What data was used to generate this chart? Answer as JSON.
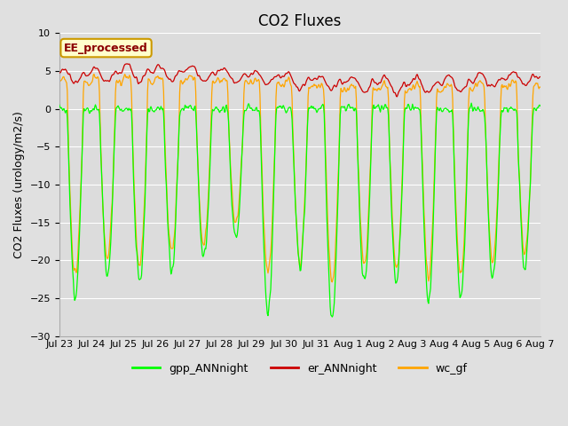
{
  "title": "CO2 Fluxes",
  "ylabel": "CO2 Fluxes (urology/m2/s)",
  "ylim": [
    -30,
    10
  ],
  "yticks": [
    -30,
    -25,
    -20,
    -15,
    -10,
    -5,
    0,
    5,
    10
  ],
  "fig_bg_color": "#e0e0e0",
  "plot_bg_color": "#dcdcdc",
  "legend_label": "EE_processed",
  "legend_bg": "#ffffcc",
  "legend_border": "#cc9900",
  "line_colors": {
    "gpp": "#00ff00",
    "er": "#cc0000",
    "wc": "#ffa500"
  },
  "x_labels": [
    "Jul 23",
    "Jul 24",
    "Jul 25",
    "Jul 26",
    "Jul 27",
    "Jul 28",
    "Jul 29",
    "Jul 30",
    "Jul 31",
    "Aug 1",
    "Aug 2",
    "Aug 3",
    "Aug 4",
    "Aug 5",
    "Aug 6",
    "Aug 7"
  ],
  "n_days": 15,
  "pts_per_day": 48,
  "title_fontsize": 12,
  "label_fontsize": 9,
  "tick_fontsize": 8,
  "day_depths_gpp": [
    25,
    22,
    23,
    21,
    20,
    17,
    27,
    21,
    28,
    23,
    23,
    25,
    25,
    22,
    21
  ],
  "day_depths_wc": [
    22,
    20,
    21,
    19,
    18,
    15,
    22,
    20,
    23,
    20,
    21,
    22,
    22,
    20,
    19
  ]
}
